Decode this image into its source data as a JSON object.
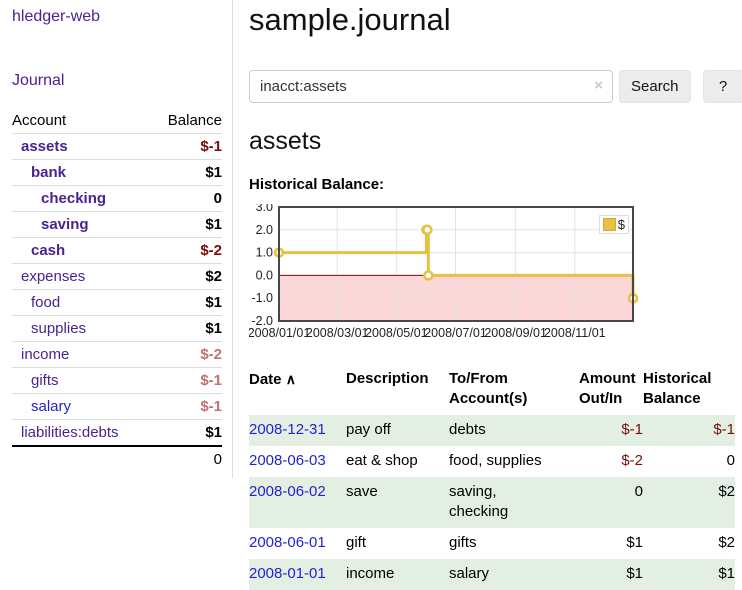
{
  "app": {
    "brand": "hledger-web",
    "nav_journal": "Journal"
  },
  "colors": {
    "link_purple": "#4a2390",
    "link_blue": "#2323cc",
    "negative_strong": "#7d0a0a",
    "negative_soft": "#c4706f",
    "row_stripe_green": "#e4efe4",
    "chart_gold": "#e9c044",
    "chart_below_zero_pink": "#fbd7d7",
    "chart_zero_line": "#8b0000"
  },
  "sidebar": {
    "accounts_header": {
      "account": "Account",
      "balance": "Balance"
    },
    "accounts": [
      {
        "name": "assets",
        "depth": 1,
        "balance": "$-1"
      },
      {
        "name": "bank",
        "depth": 2,
        "balance": "$1"
      },
      {
        "name": "checking",
        "depth": 3,
        "balance": "0"
      },
      {
        "name": "saving",
        "depth": 3,
        "balance": "$1"
      },
      {
        "name": "cash",
        "depth": 2,
        "balance": "$-2"
      },
      {
        "name": "expenses",
        "depth": 1,
        "balance": "$2"
      },
      {
        "name": "food",
        "depth": 2,
        "balance": "$1"
      },
      {
        "name": "supplies",
        "depth": 2,
        "balance": "$1"
      },
      {
        "name": "income",
        "depth": 1,
        "balance": "$-2"
      },
      {
        "name": "gifts",
        "depth": 2,
        "balance": "$-1"
      },
      {
        "name": "salary",
        "depth": 2,
        "balance": "$-1"
      },
      {
        "name": "liabilities:debts",
        "depth": 1,
        "balance": "$1"
      }
    ],
    "total": "0"
  },
  "main": {
    "title": "sample.journal",
    "search": {
      "value": "inacct:assets",
      "clear_icon": "×",
      "button": "Search",
      "help_button": "?"
    },
    "account_heading": "assets",
    "chart_label": "Historical Balance:"
  },
  "chart_data": {
    "type": "line",
    "step": true,
    "title": "Historical Balance:",
    "x_range": [
      "2008-01-01",
      "2008-12-31"
    ],
    "ylim": [
      -2.0,
      3.0
    ],
    "y_ticks": [
      "3.0",
      "2.0",
      "1.0",
      "0.0",
      "-1.0",
      "-2.0"
    ],
    "x_ticks": [
      {
        "date": "2008-01-01",
        "label": "2008/01/01"
      },
      {
        "date": "2008-03-01",
        "label": "2008/03/01"
      },
      {
        "date": "2008-05-01",
        "label": "2008/05/01"
      },
      {
        "date": "2008-07-01",
        "label": "2008/07/01"
      },
      {
        "date": "2008-09-01",
        "label": "2008/09/01"
      },
      {
        "date": "2008-11-01",
        "label": "2008/11/01"
      }
    ],
    "series": [
      {
        "name": "$",
        "color": "#e9c044",
        "points": [
          {
            "date": "2008-01-01",
            "value": 1.0
          },
          {
            "date": "2008-06-01",
            "value": 2.0
          },
          {
            "date": "2008-06-02",
            "value": 2.0
          },
          {
            "date": "2008-06-03",
            "value": 0.0
          },
          {
            "date": "2008-12-31",
            "value": -1.0
          }
        ]
      }
    ],
    "legend": {
      "position": "top-right",
      "label": "$",
      "swatch_color": "#e9c044"
    },
    "grid": true,
    "zero_line_color": "#8b0000",
    "below_zero_fill": "#fbd7d7",
    "grid_color": "#e2e2e2",
    "border_color": "#47474c"
  },
  "register": {
    "sort_arrow": "∧",
    "headers": [
      "Date",
      "Description",
      "To/From\nAccount(s)",
      "Amount\nOut/In",
      "Historical\nBalance"
    ],
    "rows": [
      {
        "date": "2008-12-31",
        "description": "pay off",
        "accounts": "debts",
        "amount": "$-1",
        "balance": "$-1"
      },
      {
        "date": "2008-06-03",
        "description": "eat & shop",
        "accounts": "food, supplies",
        "amount": "$-2",
        "balance": "0"
      },
      {
        "date": "2008-06-02",
        "description": "save",
        "accounts": "saving,\nchecking",
        "amount": "0",
        "balance": "$2"
      },
      {
        "date": "2008-06-01",
        "description": "gift",
        "accounts": "gifts",
        "amount": "$1",
        "balance": "$2"
      },
      {
        "date": "2008-01-01",
        "description": "income",
        "accounts": "salary",
        "amount": "$1",
        "balance": "$1"
      }
    ]
  }
}
